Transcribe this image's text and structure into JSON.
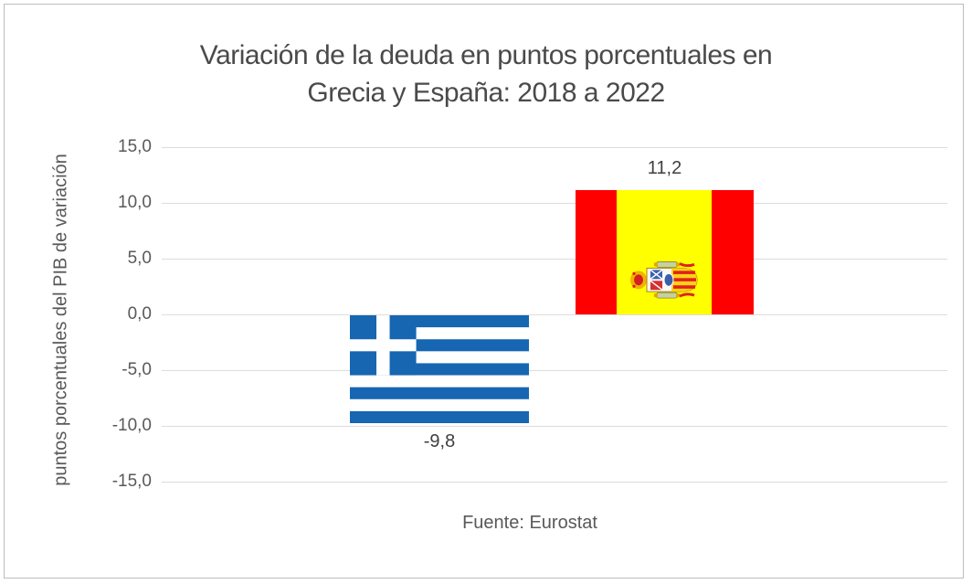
{
  "chart_data": {
    "type": "bar",
    "title": "Variación de la deuda en puntos porcentuales en Grecia y España: 2018 a 2022",
    "title_lines": [
      "Variación de la deuda en puntos porcentuales en",
      "Grecia y España: 2018 a 2022"
    ],
    "ylabel": "puntos porcentuales del PIB de variación",
    "categories": [
      "Grecia",
      "España"
    ],
    "values": [
      -9.8,
      11.2
    ],
    "data_labels": [
      "-9,8",
      "11,2"
    ],
    "bar_style": "bars drawn as country flags (Greece flag for negative bar, Spain flag rotated 90° for positive bar)",
    "yticks": [
      15,
      10,
      5,
      0,
      -5,
      -10,
      -15
    ],
    "ytick_labels": [
      "15,0",
      "10,0",
      "5,0",
      "0,0",
      "-5,0",
      "-10,0",
      "-15,0"
    ],
    "ylim": [
      -15,
      15
    ],
    "grid": true,
    "legend": false,
    "x_axis_labels_shown": false,
    "source": "Fuente: Eurostat"
  },
  "colors": {
    "greece_flag_blue": "#1666b2",
    "spain_flag_red": "#fe0000",
    "spain_flag_yellow": "#ffff00",
    "gridline": "#dcdcdc",
    "title_text": "#4a4a4a",
    "axis_text": "#595959",
    "frame_border": "#bdbdbd"
  }
}
